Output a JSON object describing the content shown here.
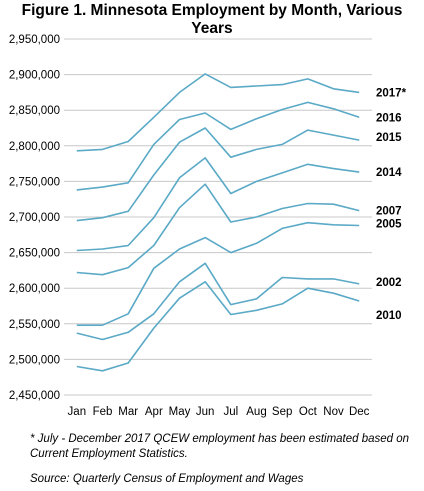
{
  "title": "Figure 1. Minnesota Employment by Month, Various Years",
  "footnote": "* July - December 2017 QCEW employment has been estimated based on Current Employment  Statistics.",
  "source": "Source: Quarterly Census of Employment and Wages",
  "colors": {
    "line": "#5aa9c6",
    "grid": "#c8c8c8",
    "text": "#000000"
  },
  "chart_data": {
    "type": "line",
    "title": "Figure 1. Minnesota Employment by Month, Various Years",
    "xlabel": "",
    "ylabel": "",
    "categories": [
      "Jan",
      "Feb",
      "Mar",
      "Apr",
      "May",
      "Jun",
      "Jul",
      "Aug",
      "Sep",
      "Oct",
      "Nov",
      "Dec"
    ],
    "ylim": [
      2450000,
      2950000
    ],
    "yticks": [
      2450000,
      2500000,
      2550000,
      2600000,
      2650000,
      2700000,
      2750000,
      2800000,
      2850000,
      2900000,
      2950000
    ],
    "ytick_labels": [
      "2,450,000",
      "2,500,000",
      "2,550,000",
      "2,600,000",
      "2,650,000",
      "2,700,000",
      "2,750,000",
      "2,800,000",
      "2,850,000",
      "2,900,000",
      "2,950,000"
    ],
    "grid": "horizontal",
    "legend": "inline labels at right end of lines",
    "series": [
      {
        "name": "2017*",
        "values": [
          2793000,
          2795000,
          2806000,
          2840000,
          2875000,
          2901000,
          2882000,
          2884000,
          2886000,
          2894000,
          2880000,
          2875000
        ]
      },
      {
        "name": "2016",
        "values": [
          2738000,
          2742000,
          2748000,
          2802000,
          2837000,
          2846000,
          2823000,
          2838000,
          2851000,
          2861000,
          2852000,
          2840000
        ]
      },
      {
        "name": "2015",
        "values": [
          2695000,
          2699000,
          2708000,
          2759000,
          2805000,
          2825000,
          2784000,
          2795000,
          2802000,
          2822000,
          2815000,
          2808000
        ]
      },
      {
        "name": "2014",
        "values": [
          2653000,
          2655000,
          2660000,
          2699000,
          2755000,
          2783000,
          2733000,
          2750000,
          2762000,
          2774000,
          2768000,
          2763000
        ]
      },
      {
        "name": "2007",
        "values": [
          2622000,
          2619000,
          2629000,
          2660000,
          2713000,
          2746000,
          2693000,
          2700000,
          2712000,
          2719000,
          2718000,
          2709000
        ]
      },
      {
        "name": "2005",
        "values": [
          2548000,
          2548000,
          2564000,
          2628000,
          2655000,
          2671000,
          2650000,
          2663000,
          2684000,
          2692000,
          2689000,
          2688000
        ]
      },
      {
        "name": "2002",
        "values": [
          2537000,
          2528000,
          2538000,
          2564000,
          2609000,
          2635000,
          2577000,
          2585000,
          2615000,
          2613000,
          2613000,
          2606000
        ]
      },
      {
        "name": "2010",
        "values": [
          2490000,
          2484000,
          2495000,
          2544000,
          2586000,
          2609000,
          2563000,
          2569000,
          2578000,
          2600000,
          2593000,
          2582000
        ]
      }
    ]
  }
}
